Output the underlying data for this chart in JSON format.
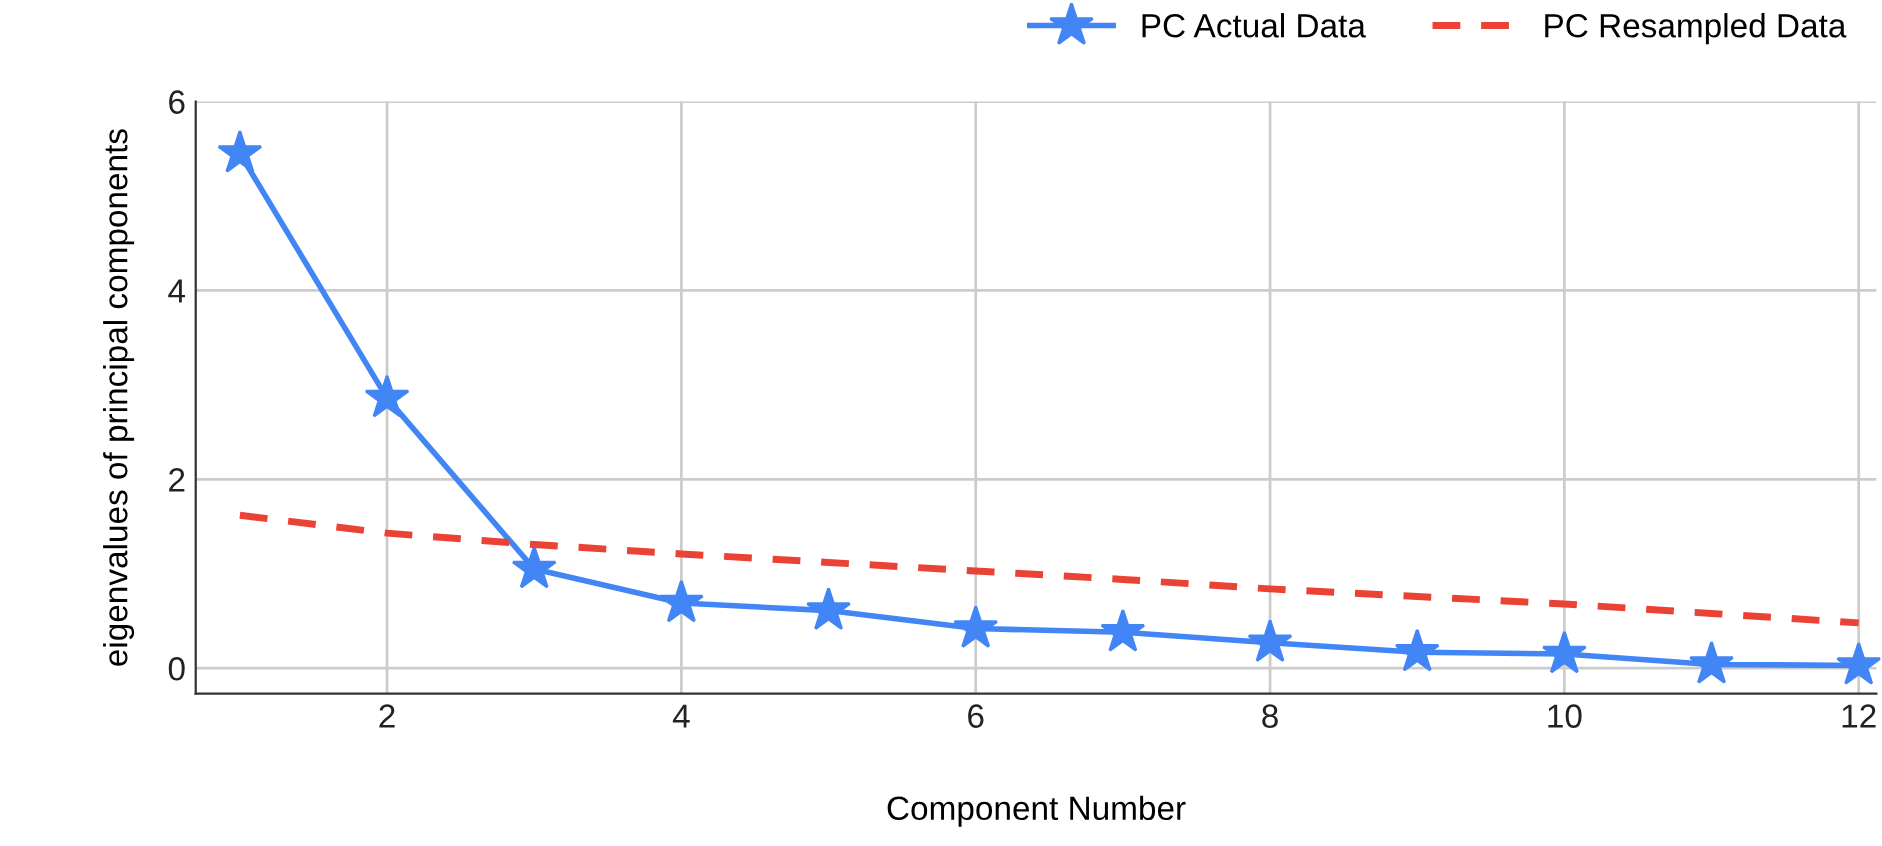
{
  "chart_data": {
    "type": "line",
    "xlabel": "Component Number",
    "ylabel": "eigenvalues of principal components",
    "x": [
      1,
      2,
      3,
      4,
      5,
      6,
      7,
      8,
      9,
      10,
      11,
      12
    ],
    "series": [
      {
        "name": "PC Actual Data",
        "color": "#4285f4",
        "marker": "star",
        "line_style": "solid",
        "values": [
          5.45,
          2.86,
          1.05,
          0.69,
          0.61,
          0.42,
          0.38,
          0.27,
          0.17,
          0.15,
          0.04,
          0.03
        ]
      },
      {
        "name": "PC Resampled Data",
        "color": "#ea4335",
        "marker": "none",
        "line_style": "dashed",
        "values": [
          1.62,
          1.43,
          1.31,
          1.21,
          1.12,
          1.03,
          0.94,
          0.84,
          0.76,
          0.68,
          0.58,
          0.48
        ]
      }
    ],
    "xlim": [
      0.7,
      12.12
    ],
    "xticks": [
      2,
      4,
      6,
      8,
      10,
      12
    ],
    "ylim": [
      -0.27,
      6
    ],
    "yticks": [
      0,
      2,
      4,
      6
    ],
    "grid": true,
    "legend": "top right"
  }
}
